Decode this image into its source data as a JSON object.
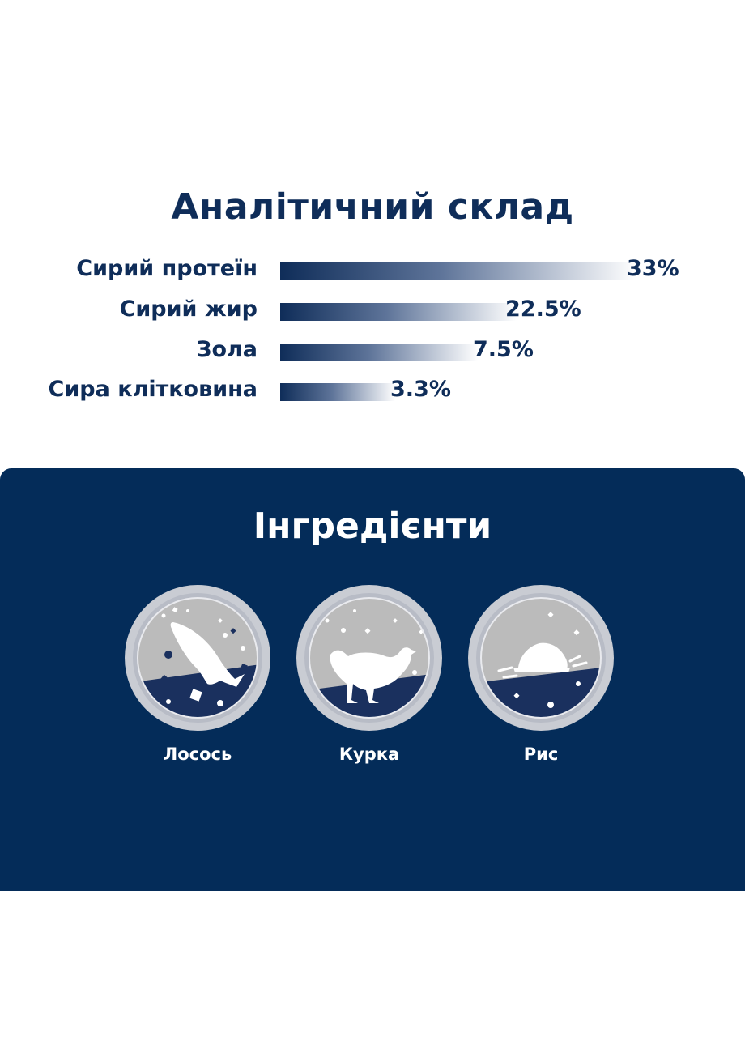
{
  "analysis": {
    "title": "Аналітичний склад",
    "bar_color": "#0f2d59",
    "items": [
      {
        "label": "Сирий протеїн",
        "value": "33%",
        "percent": 33
      },
      {
        "label": "Сирий жир",
        "value": "22.5%",
        "percent": 22.5
      },
      {
        "label": "Зола",
        "value": "7.5%",
        "percent": 7.5
      },
      {
        "label": "Сира клітковина",
        "value": "3.3%",
        "percent": 3.3
      }
    ]
  },
  "ingredients": {
    "title": "Інгредієнти",
    "background_color": "#042c59",
    "items": [
      {
        "label": "Лосось",
        "icon": "salmon-icon"
      },
      {
        "label": "Курка",
        "icon": "chicken-icon"
      },
      {
        "label": "Рис",
        "icon": "rice-icon"
      }
    ]
  }
}
